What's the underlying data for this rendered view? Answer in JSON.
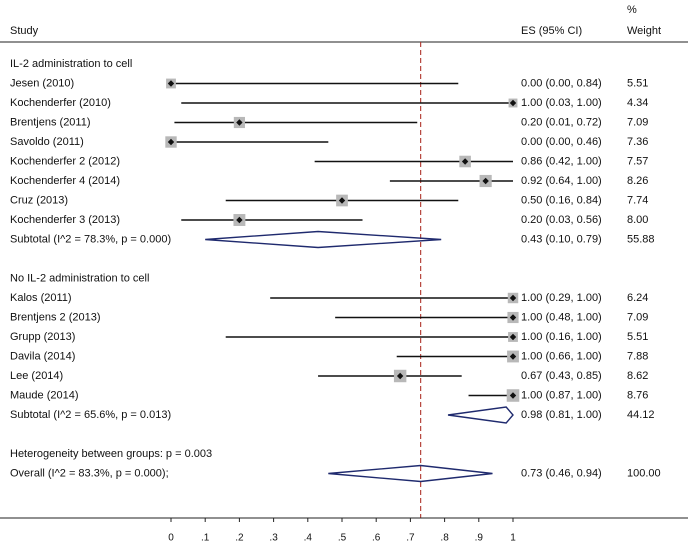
{
  "chart_data": {
    "type": "forest",
    "headers": {
      "study": "Study",
      "es": "ES (95% CI)",
      "weight_pct": "%",
      "weight": "Weight"
    },
    "x_ticks": [
      "0",
      ".1",
      ".2",
      ".3",
      ".4",
      ".5",
      ".6",
      ".7",
      ".8",
      ".9",
      "1"
    ],
    "xlim": [
      0,
      1
    ],
    "overall_line": 0.73,
    "groups": [
      {
        "label": "IL-2 administration to cell",
        "studies": [
          {
            "name": "Jesen (2010)",
            "es": 0.0,
            "lo": 0.0,
            "hi": 0.84,
            "ci_text": "0.00 (0.00, 0.84)",
            "weight": "5.51"
          },
          {
            "name": "Kochenderfer (2010)",
            "es": 1.0,
            "lo": 0.03,
            "hi": 1.0,
            "ci_text": "1.00 (0.03, 1.00)",
            "weight": "4.34"
          },
          {
            "name": "Brentjens (2011)",
            "es": 0.2,
            "lo": 0.01,
            "hi": 0.72,
            "ci_text": "0.20 (0.01, 0.72)",
            "weight": "7.09"
          },
          {
            "name": "Savoldo (2011)",
            "es": 0.0,
            "lo": 0.0,
            "hi": 0.46,
            "ci_text": "0.00 (0.00, 0.46)",
            "weight": "7.36"
          },
          {
            "name": "Kochenderfer 2 (2012)",
            "es": 0.86,
            "lo": 0.42,
            "hi": 1.0,
            "ci_text": "0.86 (0.42, 1.00)",
            "weight": "7.57"
          },
          {
            "name": "Kochenderfer 4 (2014)",
            "es": 0.92,
            "lo": 0.64,
            "hi": 1.0,
            "ci_text": "0.92 (0.64, 1.00)",
            "weight": "8.26"
          },
          {
            "name": "Cruz (2013)",
            "es": 0.5,
            "lo": 0.16,
            "hi": 0.84,
            "ci_text": "0.50 (0.16, 0.84)",
            "weight": "7.74"
          },
          {
            "name": "Kochenderfer 3 (2013)",
            "es": 0.2,
            "lo": 0.03,
            "hi": 0.56,
            "ci_text": "0.20 (0.03, 0.56)",
            "weight": "8.00"
          }
        ],
        "subtotal": {
          "label": "Subtotal  (I^2 = 78.3%, p = 0.000)",
          "es": 0.43,
          "lo": 0.1,
          "hi": 0.79,
          "ci_text": "0.43 (0.10, 0.79)",
          "weight": "55.88"
        }
      },
      {
        "label": "No IL-2 administration to cell",
        "studies": [
          {
            "name": "Kalos (2011)",
            "es": 1.0,
            "lo": 0.29,
            "hi": 1.0,
            "ci_text": "1.00 (0.29, 1.00)",
            "weight": "6.24"
          },
          {
            "name": "Brentjens 2 (2013)",
            "es": 1.0,
            "lo": 0.48,
            "hi": 1.0,
            "ci_text": "1.00 (0.48, 1.00)",
            "weight": "7.09"
          },
          {
            "name": "Grupp (2013)",
            "es": 1.0,
            "lo": 0.16,
            "hi": 1.0,
            "ci_text": "1.00 (0.16, 1.00)",
            "weight": "5.51"
          },
          {
            "name": "Davila (2014)",
            "es": 1.0,
            "lo": 0.66,
            "hi": 1.0,
            "ci_text": "1.00 (0.66, 1.00)",
            "weight": "7.88"
          },
          {
            "name": "Lee (2014)",
            "es": 0.67,
            "lo": 0.43,
            "hi": 0.85,
            "ci_text": "0.67 (0.43, 0.85)",
            "weight": "8.62"
          },
          {
            "name": "Maude (2014)",
            "es": 1.0,
            "lo": 0.87,
            "hi": 1.0,
            "ci_text": "1.00 (0.87, 1.00)",
            "weight": "8.76"
          }
        ],
        "subtotal": {
          "label": "Subtotal  (I^2 = 65.6%, p = 0.013)",
          "es": 0.98,
          "lo": 0.81,
          "hi": 1.0,
          "ci_text": "0.98 (0.81, 1.00)",
          "weight": "44.12"
        }
      }
    ],
    "heterogeneity": "Heterogeneity between groups: p = 0.003",
    "overall": {
      "label": "Overall  (I^2 = 83.3%, p = 0.000);",
      "es": 0.73,
      "lo": 0.46,
      "hi": 0.94,
      "ci_text": "0.73 (0.46, 0.94)",
      "weight": "100.00"
    },
    "colors": {
      "diamond": "#1f2a6e",
      "ref_line": "#b0342c",
      "marker_box": "#b8b8b8",
      "axis": "#222222"
    }
  }
}
